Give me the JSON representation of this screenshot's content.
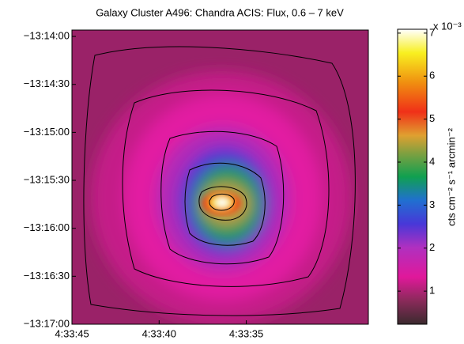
{
  "chart_data": {
    "type": "heatmap",
    "title": "Galaxy Cluster A496: Chandra ACIS: Flux, 0.6 – 7 keV",
    "xlim": [
      45.0,
      28.0
    ],
    "xticks": [
      {
        "value": 45,
        "label": "4:33:45"
      },
      {
        "value": 40,
        "label": "4:33:40"
      },
      {
        "value": 35,
        "label": "4:33:35"
      }
    ],
    "ylim": [
      -1020,
      -836
    ],
    "yticks": [
      {
        "value": -840,
        "label": "−13:14:00"
      },
      {
        "value": -870,
        "label": "−13:14:30"
      },
      {
        "value": -900,
        "label": "−13:15:00"
      },
      {
        "value": -930,
        "label": "−13:15:30"
      },
      {
        "value": -960,
        "label": "−13:16:00"
      },
      {
        "value": -990,
        "label": "−13:16:30"
      },
      {
        "value": -1020,
        "label": "−13:17:00"
      }
    ],
    "colorbar": {
      "label": "cts cm⁻² s⁻¹ arcmin⁻²",
      "multiplier": "x 10⁻³",
      "lim": [
        0.23,
        7.09
      ],
      "ticks": [
        1,
        2,
        3,
        4,
        5,
        6,
        7
      ]
    }
  }
}
